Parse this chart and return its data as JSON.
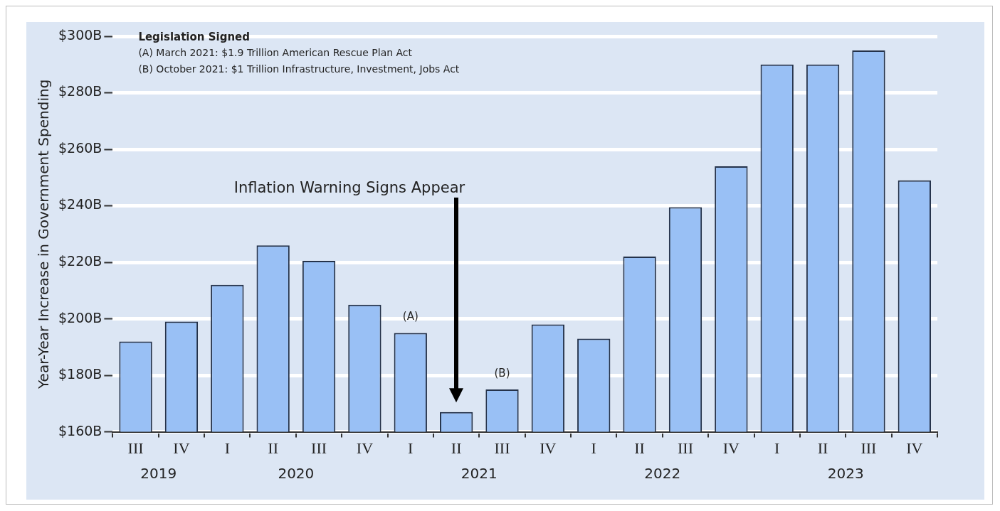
{
  "chart_data": {
    "type": "bar",
    "ylabel": "Year-Year Increase in Government Spending",
    "categories": [
      "III",
      "IV",
      "I",
      "II",
      "III",
      "IV",
      "I",
      "II",
      "III",
      "IV",
      "I",
      "II",
      "III",
      "IV",
      "I",
      "II",
      "III",
      "IV"
    ],
    "values": [
      192,
      199,
      212,
      226,
      220.5,
      205,
      195,
      167,
      175,
      198,
      193,
      222,
      239.5,
      254,
      290,
      290,
      295,
      249
    ],
    "color": "#99c0f5",
    "ylim": [
      160,
      300
    ],
    "yticks": [
      {
        "value": 160,
        "label": "$160B"
      },
      {
        "value": 180,
        "label": "$180B"
      },
      {
        "value": 200,
        "label": "$200B"
      },
      {
        "value": 220,
        "label": "$220B"
      },
      {
        "value": 240,
        "label": "$240B"
      },
      {
        "value": 260,
        "label": "$260B"
      },
      {
        "value": 280,
        "label": "$280B"
      },
      {
        "value": 300,
        "label": "$300B"
      }
    ],
    "grid": "y",
    "legend": false,
    "annotations": [
      "Legislation Signed",
      "(A) March 2021: $1.9 Trillion American Rescue Plan Act",
      "(B) October 2021: $1 Trillion Infrastructure, Investment, Jobs Act",
      "Inflation Warning Signs Appear",
      "(A)",
      "(B)",
      "2019",
      "2020",
      "2021",
      "2022",
      "2023"
    ]
  }
}
